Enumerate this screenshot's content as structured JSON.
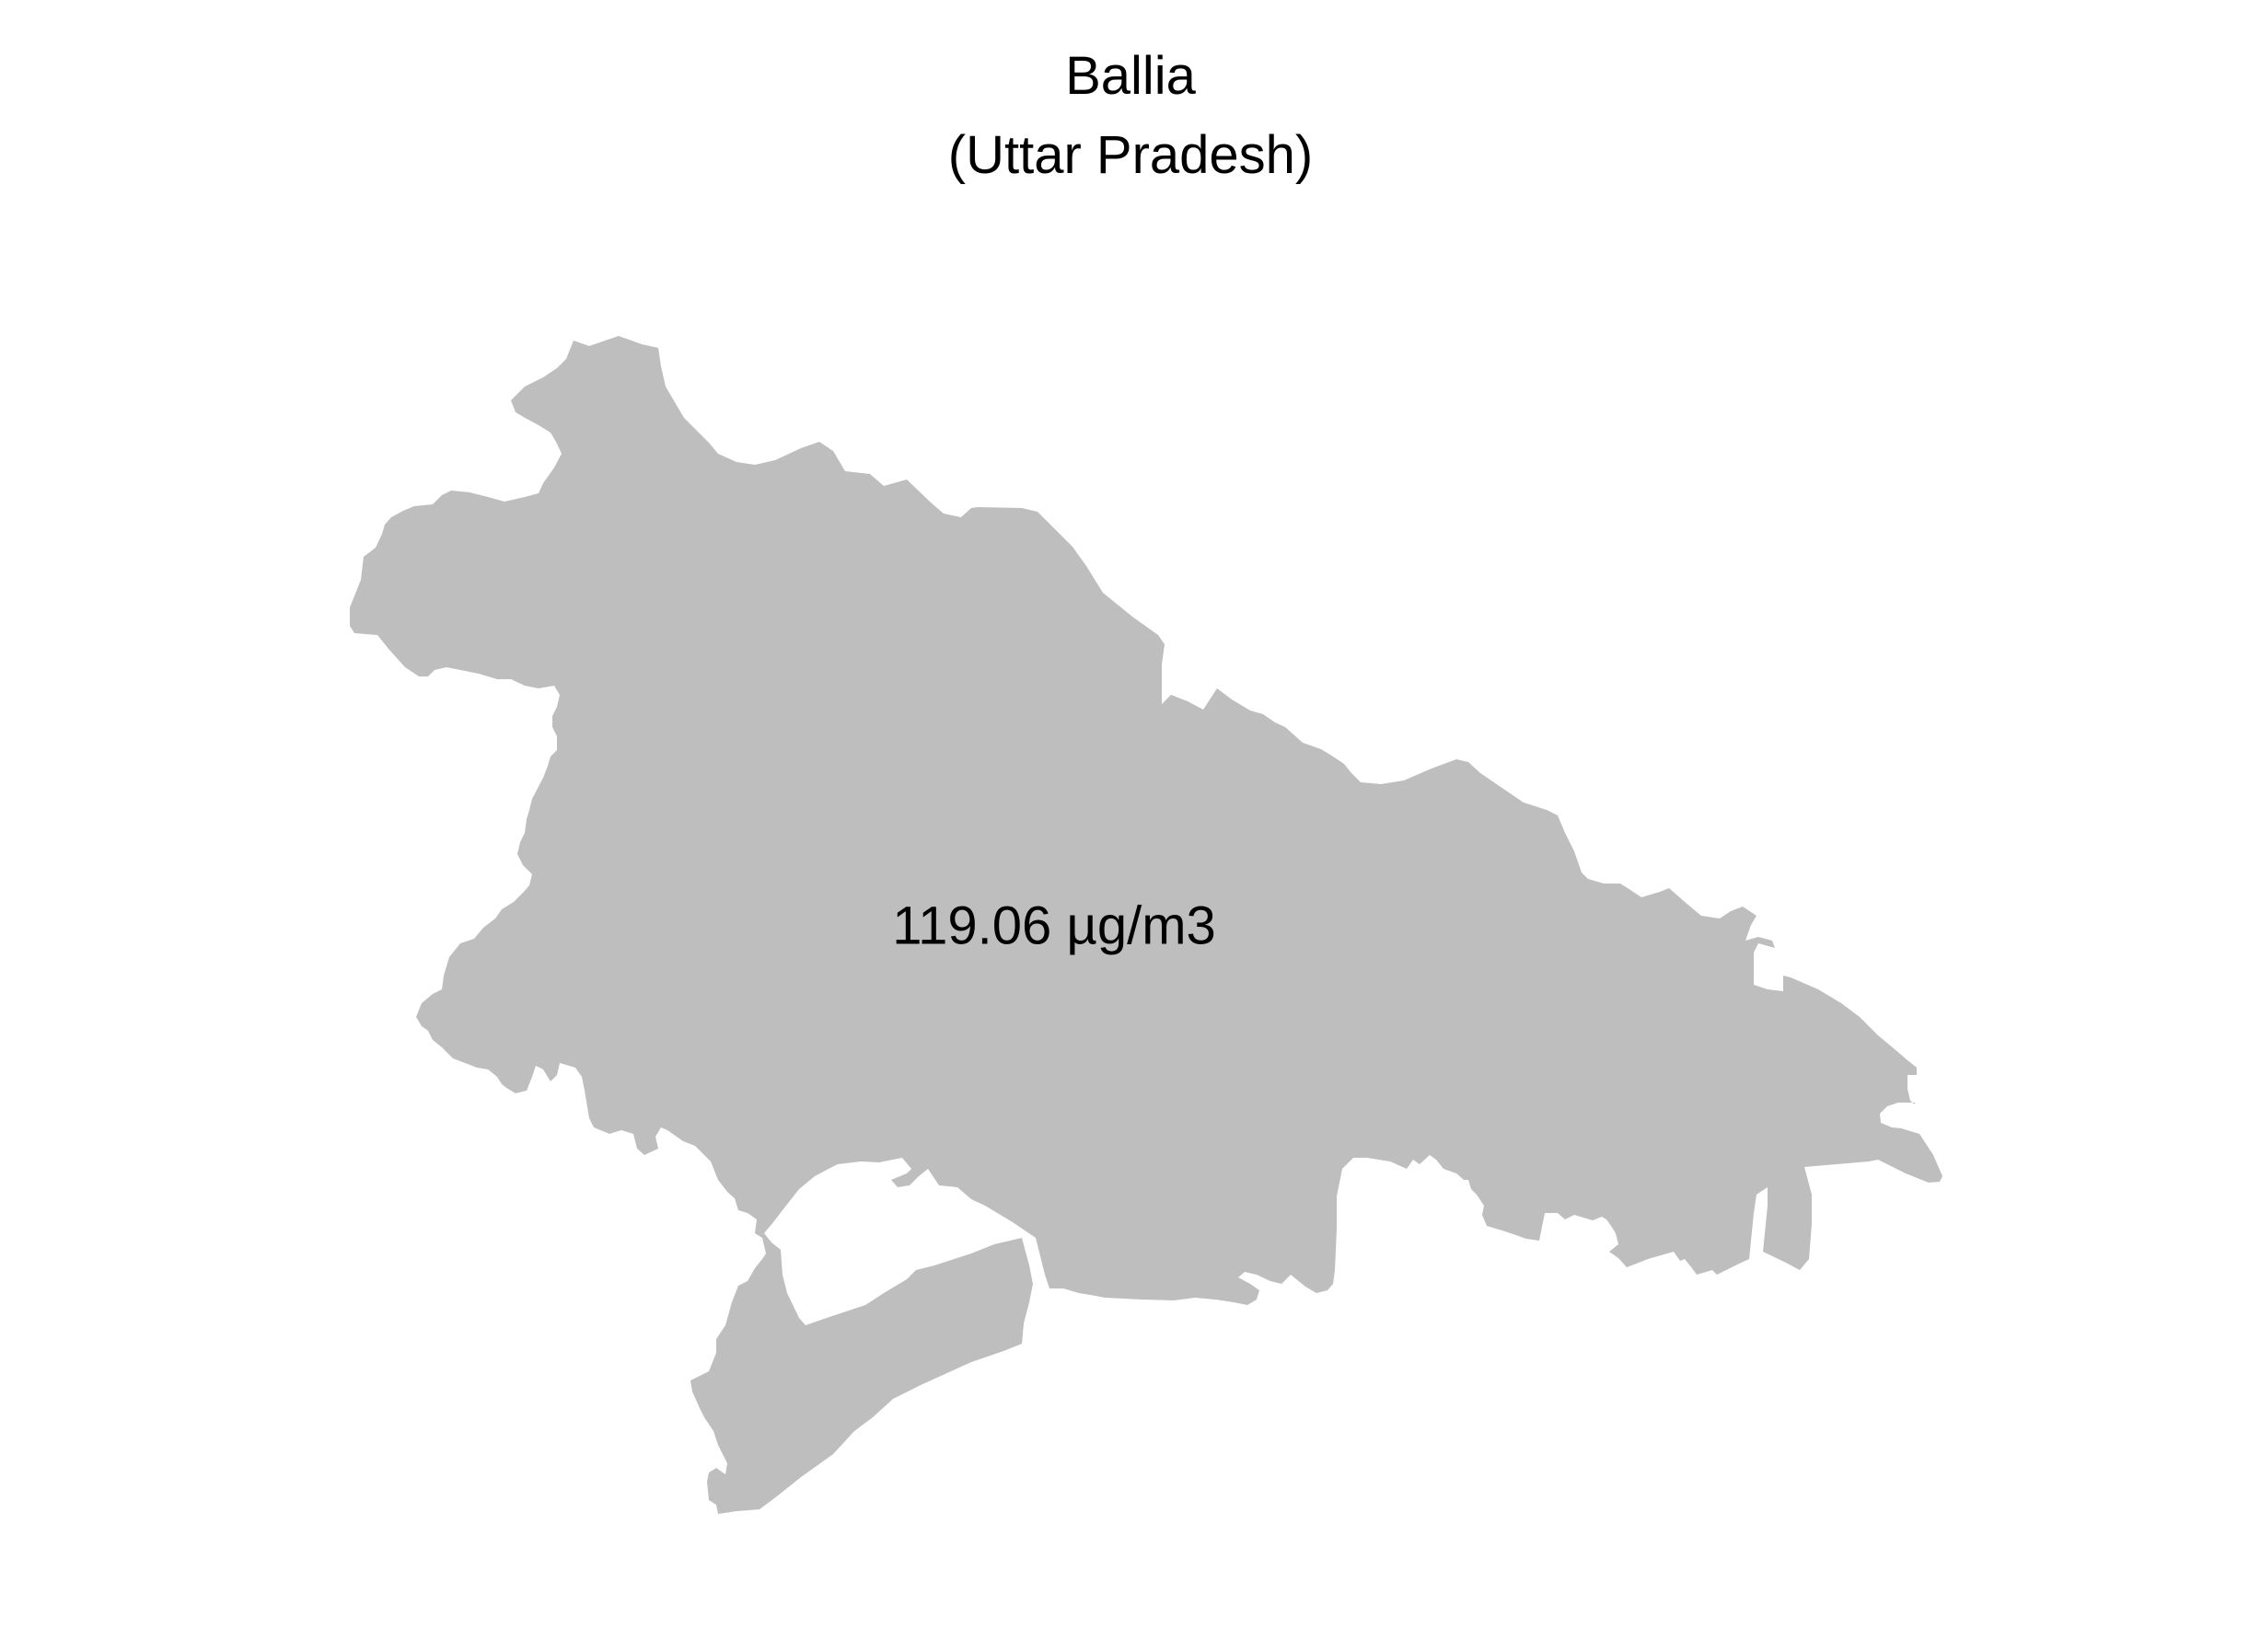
{
  "map": {
    "title": "Ballia",
    "subtitle": "(Uttar Pradesh)",
    "region_label": "119.06 µg/m3",
    "region_value": 119.06,
    "unit": "µg/m3",
    "region_fill": "#bebebe",
    "background": "#ffffff",
    "text_color": "#000000"
  }
}
